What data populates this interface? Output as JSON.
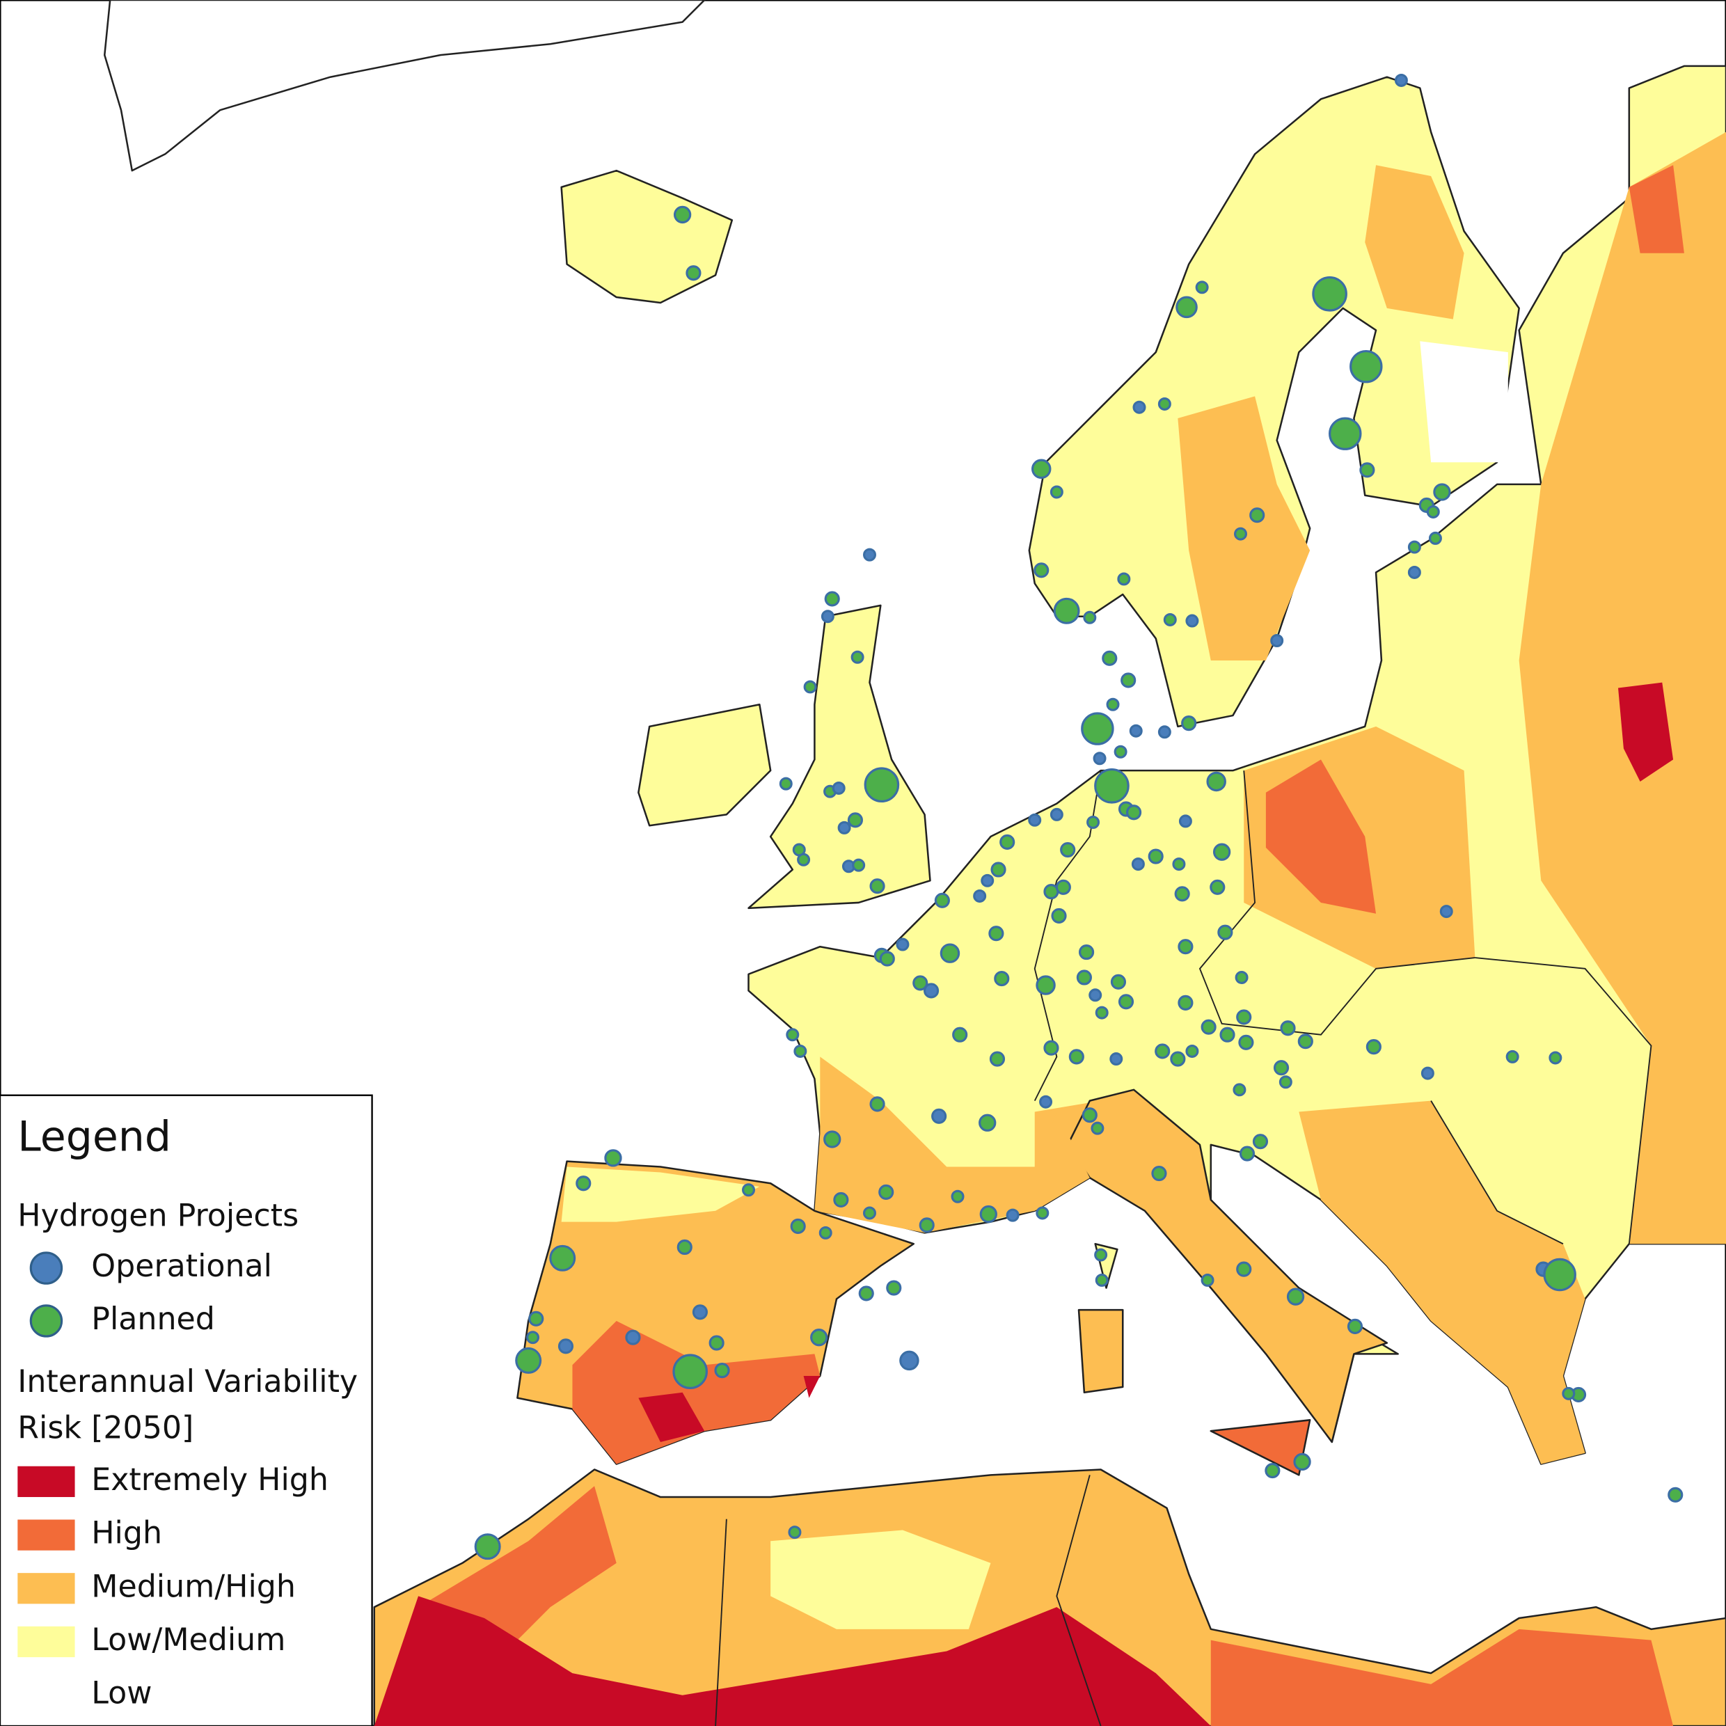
{
  "legend": {
    "title": "Legend",
    "projects": {
      "title": "Hydrogen Projects",
      "items": [
        {
          "label": "Operational",
          "color": "#4a7ebb"
        },
        {
          "label": "Planned",
          "color": "#4daf4a"
        }
      ]
    },
    "risk": {
      "title": [
        "Interannual Variability",
        "Risk [2050]"
      ],
      "items": [
        {
          "label": "Extremely High",
          "color": "#c80a26"
        },
        {
          "label": "High",
          "color": "#f26b38"
        },
        {
          "label": "Medium/High",
          "color": "#fdbe52"
        },
        {
          "label": "Low/Medium",
          "color": "#fefd9a"
        },
        {
          "label": "Low",
          "color": "#ffffff"
        }
      ]
    }
  }
}
